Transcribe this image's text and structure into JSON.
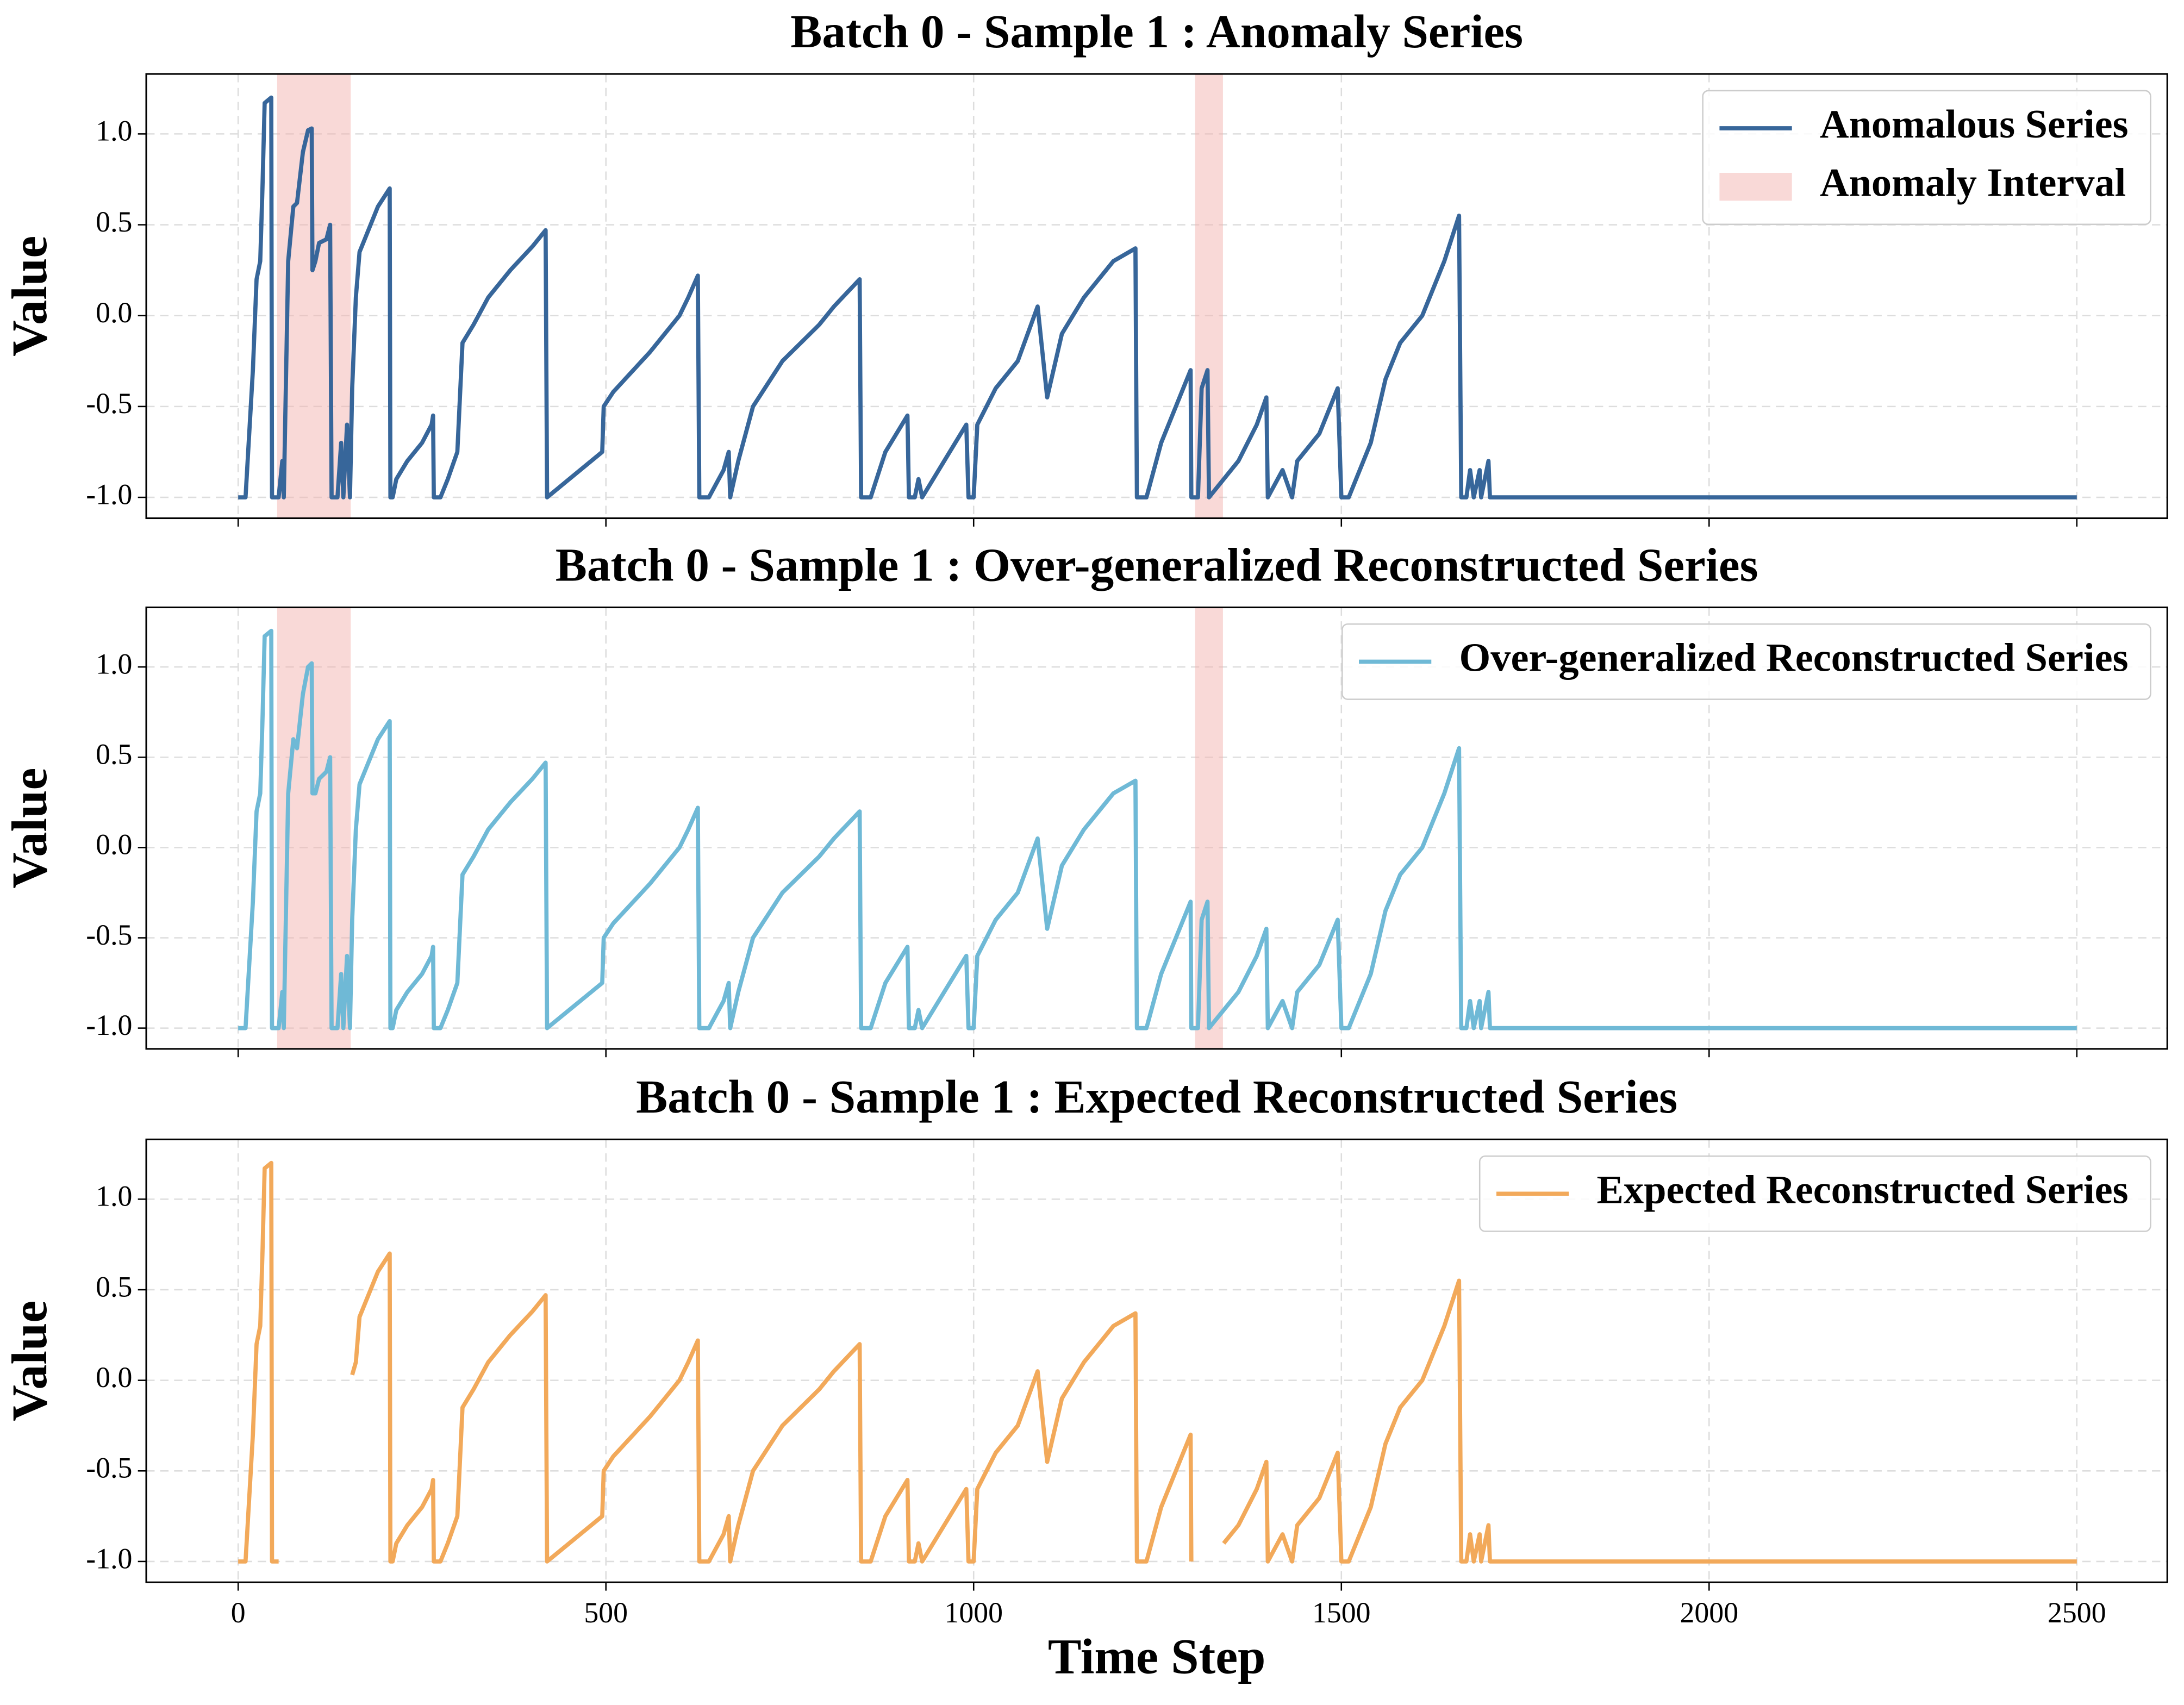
{
  "chart_data": [
    {
      "type": "line",
      "title": "Batch 0 - Sample 1 : Anomaly Series",
      "ylabel": "Value",
      "x": [
        0,
        10,
        20,
        25,
        30,
        33,
        36,
        45,
        46,
        55,
        60,
        62,
        68,
        75,
        80,
        88,
        95,
        100,
        101,
        105,
        110,
        120,
        125,
        127,
        135,
        140,
        143,
        148,
        152,
        155,
        160,
        165,
        175,
        190,
        206,
        207,
        210,
        215,
        230,
        250,
        263,
        265,
        266,
        275,
        285,
        298,
        305,
        320,
        340,
        370,
        400,
        418,
        420,
        450,
        495,
        497,
        510,
        560,
        600,
        612,
        625,
        627,
        640,
        660,
        667,
        669,
        680,
        700,
        740,
        790,
        810,
        845,
        847,
        860,
        880,
        910,
        912,
        920,
        925,
        930,
        960,
        990,
        993,
        1000,
        1005,
        1030,
        1060,
        1087,
        1100,
        1120,
        1150,
        1190,
        1220,
        1222,
        1235,
        1255,
        1285,
        1295,
        1296,
        1305,
        1310,
        1318,
        1320,
        1340,
        1360,
        1385,
        1398,
        1400,
        1420,
        1433,
        1440,
        1470,
        1495,
        1500,
        1510,
        1540,
        1560,
        1580,
        1610,
        1640,
        1660,
        1663,
        1670,
        1675,
        1680,
        1688,
        1690,
        1700,
        1702,
        2500
      ],
      "series": [
        {
          "name": "Anomalous Series",
          "color": "#37669a",
          "values": [
            -1,
            -1,
            -0.3,
            0.2,
            0.3,
            0.7,
            1.17,
            1.2,
            -1,
            -1,
            -0.8,
            -1,
            0.3,
            0.6,
            0.62,
            0.9,
            1.02,
            1.03,
            0.25,
            0.3,
            0.4,
            0.42,
            0.5,
            -1,
            -1,
            -0.7,
            -1,
            -0.6,
            -1,
            -0.4,
            0.1,
            0.35,
            0.45,
            0.6,
            0.7,
            -1,
            -1,
            -0.9,
            -0.8,
            -0.7,
            -0.6,
            -0.55,
            -1,
            -1,
            -0.9,
            -0.75,
            -0.15,
            -0.05,
            0.1,
            0.25,
            0.38,
            0.47,
            -1,
            -0.9,
            -0.75,
            -0.5,
            -0.42,
            -0.2,
            0.0,
            0.1,
            0.22,
            -1,
            -1,
            -0.85,
            -0.75,
            -1,
            -0.8,
            -0.5,
            -0.25,
            -0.05,
            0.05,
            0.2,
            -1,
            -1,
            -0.75,
            -0.55,
            -1,
            -1,
            -0.9,
            -1,
            -0.8,
            -0.6,
            -1,
            -1,
            -0.6,
            -0.4,
            -0.25,
            0.05,
            -0.45,
            -0.1,
            0.1,
            0.3,
            0.37,
            -1,
            -1,
            -0.7,
            -0.4,
            -0.3,
            -1,
            -1,
            -0.4,
            -0.3,
            -1,
            -0.9,
            -0.8,
            -0.6,
            -0.45,
            -1,
            -0.85,
            -1,
            -0.8,
            -0.65,
            -0.4,
            -1,
            -1,
            -0.7,
            -0.35,
            -0.15,
            0.0,
            0.3,
            0.55,
            -1,
            -1,
            -0.85,
            -1,
            -0.85,
            -1,
            -0.8,
            -1,
            -1
          ]
        }
      ],
      "anomaly_intervals": [
        [
          53,
          153
        ],
        [
          1301,
          1339
        ]
      ],
      "interval_name": "Anomaly Interval",
      "interval_color": "#f4b4b0",
      "xlim": [
        -125,
        2623
      ],
      "ylim": [
        -1.115,
        1.33
      ],
      "xticks": [
        0,
        500,
        1000,
        1500,
        2000,
        2500
      ],
      "yticks": [
        {
          "value": -1,
          "label": "-1.0"
        },
        {
          "value": -0.5,
          "label": "-0.5"
        },
        {
          "value": 0,
          "label": "0.0"
        },
        {
          "value": 0.5,
          "label": "0.5"
        },
        {
          "value": 1,
          "label": "1.0"
        }
      ],
      "grid": true,
      "legend": "upper right"
    },
    {
      "type": "line",
      "title": "Batch 0 - Sample 1 : Over-generalized Reconstructed Series",
      "ylabel": "Value",
      "x": [
        0,
        10,
        20,
        25,
        30,
        33,
        36,
        45,
        46,
        55,
        60,
        62,
        68,
        75,
        80,
        88,
        95,
        100,
        101,
        105,
        110,
        120,
        125,
        127,
        135,
        140,
        143,
        148,
        152,
        155,
        160,
        165,
        175,
        190,
        206,
        207,
        210,
        215,
        230,
        250,
        263,
        265,
        266,
        275,
        285,
        298,
        305,
        320,
        340,
        370,
        400,
        418,
        420,
        450,
        495,
        497,
        510,
        560,
        600,
        612,
        625,
        627,
        640,
        660,
        667,
        669,
        680,
        700,
        740,
        790,
        810,
        845,
        847,
        860,
        880,
        910,
        912,
        920,
        925,
        930,
        960,
        990,
        993,
        1000,
        1005,
        1030,
        1060,
        1087,
        1100,
        1120,
        1150,
        1190,
        1220,
        1222,
        1235,
        1255,
        1285,
        1295,
        1296,
        1305,
        1310,
        1318,
        1320,
        1340,
        1360,
        1385,
        1398,
        1400,
        1420,
        1433,
        1440,
        1470,
        1495,
        1500,
        1510,
        1540,
        1560,
        1580,
        1610,
        1640,
        1660,
        1663,
        1670,
        1675,
        1680,
        1688,
        1690,
        1700,
        1702,
        2500
      ],
      "series": [
        {
          "name": "Over-generalized Reconstructed Series",
          "color": "#6fb9d6",
          "values": [
            -1,
            -1,
            -0.3,
            0.2,
            0.3,
            0.7,
            1.17,
            1.2,
            -1,
            -1,
            -0.8,
            -1,
            0.3,
            0.6,
            0.55,
            0.85,
            1.0,
            1.02,
            0.3,
            0.3,
            0.38,
            0.42,
            0.5,
            -1,
            -1,
            -0.7,
            -1,
            -0.6,
            -1,
            -0.4,
            0.1,
            0.35,
            0.45,
            0.6,
            0.7,
            -1,
            -1,
            -0.9,
            -0.8,
            -0.7,
            -0.6,
            -0.55,
            -1,
            -1,
            -0.9,
            -0.75,
            -0.15,
            -0.05,
            0.1,
            0.25,
            0.38,
            0.47,
            -1,
            -0.9,
            -0.75,
            -0.5,
            -0.42,
            -0.2,
            0.0,
            0.1,
            0.22,
            -1,
            -1,
            -0.85,
            -0.75,
            -1,
            -0.8,
            -0.5,
            -0.25,
            -0.05,
            0.05,
            0.2,
            -1,
            -1,
            -0.75,
            -0.55,
            -1,
            -1,
            -0.9,
            -1,
            -0.8,
            -0.6,
            -1,
            -1,
            -0.6,
            -0.4,
            -0.25,
            0.05,
            -0.45,
            -0.1,
            0.1,
            0.3,
            0.37,
            -1,
            -1,
            -0.7,
            -0.4,
            -0.3,
            -1,
            -1,
            -0.4,
            -0.3,
            -1,
            -0.9,
            -0.8,
            -0.6,
            -0.45,
            -1,
            -0.85,
            -1,
            -0.8,
            -0.65,
            -0.4,
            -1,
            -1,
            -0.7,
            -0.35,
            -0.15,
            0.0,
            0.3,
            0.55,
            -1,
            -1,
            -0.85,
            -1,
            -0.85,
            -1,
            -0.8,
            -1,
            -1
          ]
        }
      ],
      "anomaly_intervals": [
        [
          53,
          153
        ],
        [
          1301,
          1339
        ]
      ],
      "interval_color": "#f4b4b0",
      "xlim": [
        -125,
        2623
      ],
      "ylim": [
        -1.115,
        1.33
      ],
      "xticks": [
        0,
        500,
        1000,
        1500,
        2000,
        2500
      ],
      "yticks": [
        {
          "value": -1,
          "label": "-1.0"
        },
        {
          "value": -0.5,
          "label": "-0.5"
        },
        {
          "value": 0,
          "label": "0.0"
        },
        {
          "value": 0.5,
          "label": "0.5"
        },
        {
          "value": 1,
          "label": "1.0"
        }
      ],
      "grid": true,
      "legend": "upper right"
    },
    {
      "type": "line",
      "title": "Batch 0 - Sample 1 : Expected Reconstructed Series",
      "ylabel": "Value",
      "xlabel": "Time Step",
      "x": [
        0,
        10,
        20,
        25,
        30,
        33,
        36,
        45,
        46,
        55,
        60,
        62,
        68,
        75,
        80,
        88,
        95,
        100,
        101,
        105,
        110,
        120,
        125,
        127,
        135,
        140,
        143,
        148,
        152,
        155,
        160,
        165,
        175,
        190,
        206,
        207,
        210,
        215,
        230,
        250,
        263,
        265,
        266,
        275,
        285,
        298,
        305,
        320,
        340,
        370,
        400,
        418,
        420,
        450,
        495,
        497,
        510,
        560,
        600,
        612,
        625,
        627,
        640,
        660,
        667,
        669,
        680,
        700,
        740,
        790,
        810,
        845,
        847,
        860,
        880,
        910,
        912,
        920,
        925,
        930,
        960,
        990,
        993,
        1000,
        1005,
        1030,
        1060,
        1087,
        1100,
        1120,
        1150,
        1190,
        1220,
        1222,
        1235,
        1255,
        1285,
        1295,
        1296,
        1305,
        1310,
        1318,
        1320,
        1340,
        1360,
        1385,
        1398,
        1400,
        1420,
        1433,
        1440,
        1470,
        1495,
        1500,
        1510,
        1540,
        1560,
        1580,
        1610,
        1640,
        1660,
        1663,
        1670,
        1675,
        1680,
        1688,
        1690,
        1700,
        1702,
        2500
      ],
      "series": [
        {
          "name": "Expected Reconstructed Series",
          "color": "#f2a95a",
          "values": [
            -1,
            -1,
            -0.3,
            0.2,
            0.3,
            0.7,
            1.17,
            1.2,
            -1,
            -1,
            null,
            null,
            null,
            null,
            null,
            null,
            null,
            null,
            null,
            null,
            null,
            null,
            null,
            null,
            null,
            null,
            null,
            null,
            null,
            0.03,
            0.1,
            0.35,
            0.45,
            0.6,
            0.7,
            -1,
            -1,
            -0.9,
            -0.8,
            -0.7,
            -0.6,
            -0.55,
            -1,
            -1,
            -0.9,
            -0.75,
            -0.15,
            -0.05,
            0.1,
            0.25,
            0.38,
            0.47,
            -1,
            -0.9,
            -0.75,
            -0.5,
            -0.42,
            -0.2,
            0.0,
            0.1,
            0.22,
            -1,
            -1,
            -0.85,
            -0.75,
            -1,
            -0.8,
            -0.5,
            -0.25,
            -0.05,
            0.05,
            0.2,
            -1,
            -1,
            -0.75,
            -0.55,
            -1,
            -1,
            -0.9,
            -1,
            -0.8,
            -0.6,
            -1,
            -1,
            -0.6,
            -0.4,
            -0.25,
            0.05,
            -0.45,
            -0.1,
            0.1,
            0.3,
            0.37,
            -1,
            -1,
            -0.7,
            -0.4,
            -0.3,
            -1,
            null,
            null,
            null,
            null,
            -0.9,
            -0.8,
            -0.6,
            -0.45,
            -1,
            -0.85,
            -1,
            -0.8,
            -0.65,
            -0.4,
            -1,
            -1,
            -0.7,
            -0.35,
            -0.15,
            0.0,
            0.3,
            0.55,
            -1,
            -1,
            -0.85,
            -1,
            -0.85,
            -1,
            -0.8,
            -1,
            -1
          ]
        }
      ],
      "xlim": [
        -125,
        2623
      ],
      "ylim": [
        -1.115,
        1.33
      ],
      "xticks": [
        0,
        500,
        1000,
        1500,
        2000,
        2500
      ],
      "yticks": [
        {
          "value": -1,
          "label": "-1.0"
        },
        {
          "value": -0.5,
          "label": "-0.5"
        },
        {
          "value": 0,
          "label": "0.0"
        },
        {
          "value": 0.5,
          "label": "0.5"
        },
        {
          "value": 1,
          "label": "1.0"
        }
      ],
      "grid": true,
      "legend": "upper right"
    }
  ]
}
